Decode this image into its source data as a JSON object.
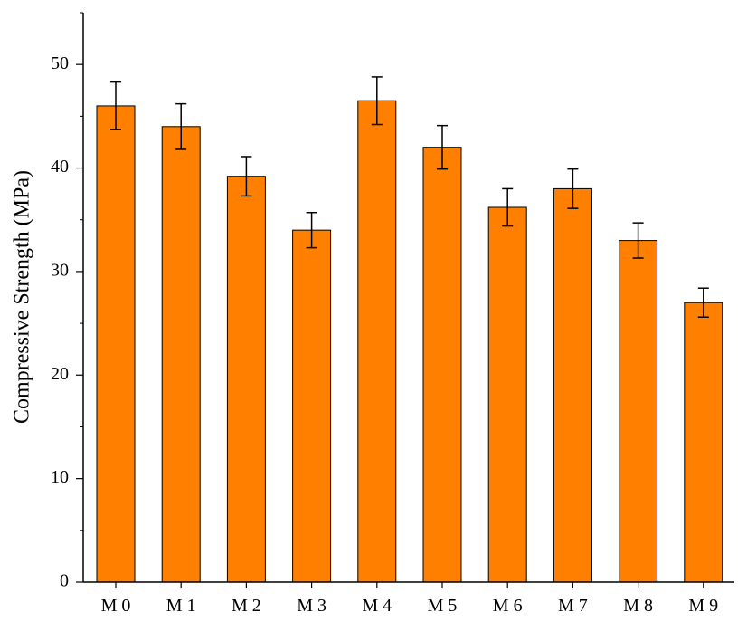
{
  "chart_data": {
    "type": "bar",
    "title": "",
    "xlabel": "",
    "ylabel": "Compressive Strength (MPa)",
    "categories": [
      "M 0",
      "M 1",
      "M 2",
      "M 3",
      "M 4",
      "M 5",
      "M 6",
      "M 7",
      "M 8",
      "M 9"
    ],
    "values": [
      46.0,
      44.0,
      39.2,
      34.0,
      46.5,
      42.0,
      36.2,
      38.0,
      33.0,
      27.0
    ],
    "error": [
      2.3,
      2.2,
      1.9,
      1.7,
      2.3,
      2.1,
      1.8,
      1.9,
      1.7,
      1.4
    ],
    "ylim": [
      0,
      55
    ],
    "yticks": [
      0,
      10,
      20,
      30,
      40,
      50
    ],
    "bar_color": "#ff8000",
    "grid": false,
    "legend": "none"
  }
}
